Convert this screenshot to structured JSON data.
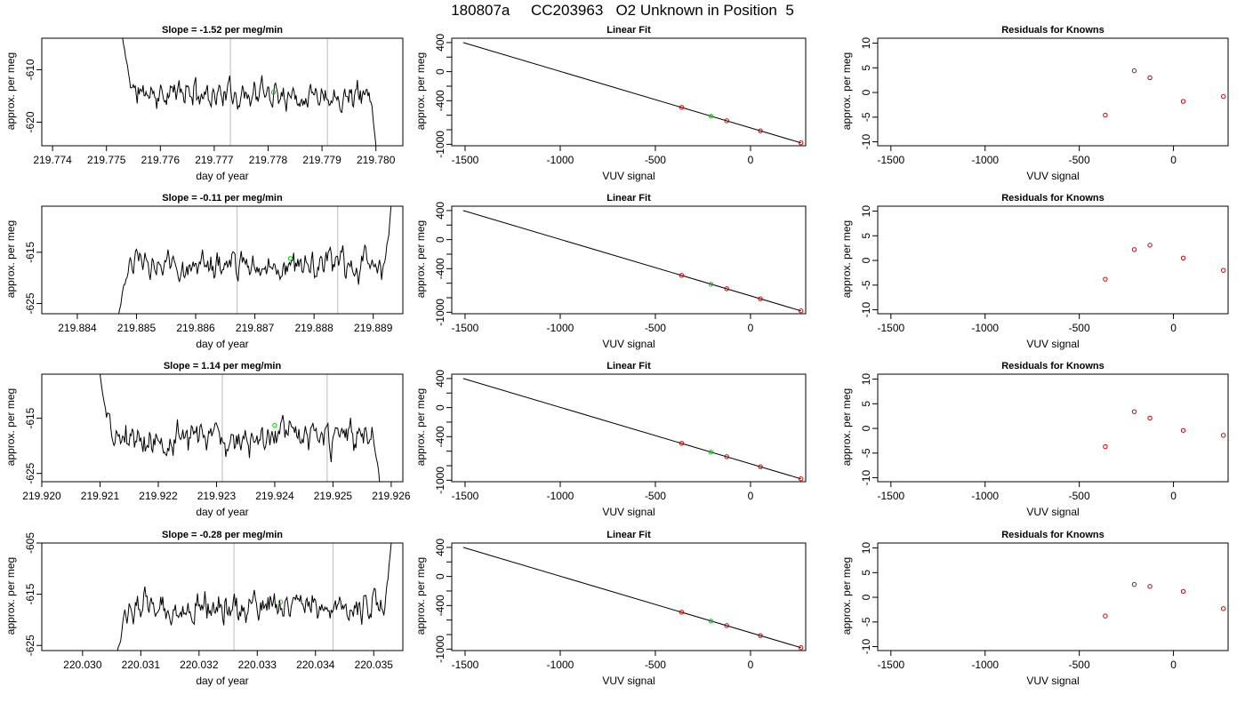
{
  "page_title": "180807a     CC203963   O2 Unknown in Position  5",
  "colors": {
    "trace": "#000000",
    "marker": "#00cc00",
    "residual": "#cc0000",
    "vline": "#bbbbbb",
    "fit": "#000000"
  },
  "chart_data": [
    {
      "type": "line",
      "panel": "trace",
      "row": 0,
      "title": "Slope =  -1.52  per meg/min",
      "xlabel": "day of year",
      "ylabel": "approx. per meg",
      "xlim": [
        219.7738,
        219.7805
      ],
      "ylim": [
        -624.5,
        -604
      ],
      "xticks": [
        219.774,
        219.775,
        219.776,
        219.777,
        219.778,
        219.779,
        219.78
      ],
      "xtick_labels": [
        "219.774",
        "219.775",
        "219.776",
        "219.777",
        "219.778",
        "219.779",
        "219.780"
      ],
      "yticks": [
        -610,
        -620
      ],
      "ytick_labels": [
        "-610",
        "-620"
      ],
      "vlines": [
        219.7773,
        219.7791
      ],
      "marker": {
        "x": 219.7781,
        "y": -614.3
      },
      "trace": {
        "x_start": 219.7753,
        "x_end": 219.78,
        "seed": 11,
        "first": -604,
        "last": -624.5,
        "level": -614.5,
        "amp": 2.2,
        "n": 260,
        "head": -604,
        "tail": -624.5
      }
    },
    {
      "type": "line",
      "panel": "trace",
      "row": 1,
      "title": "Slope =  -0.11  per meg/min",
      "xlabel": "day of year",
      "ylabel": "approx. per meg",
      "xlim": [
        219.8834,
        219.8895
      ],
      "ylim": [
        -627,
        -606
      ],
      "xticks": [
        219.884,
        219.885,
        219.886,
        219.887,
        219.888,
        219.889
      ],
      "xtick_labels": [
        "219.884",
        "219.885",
        "219.886",
        "219.887",
        "219.888",
        "219.889"
      ],
      "yticks": [
        -615,
        -625
      ],
      "ytick_labels": [
        "-615",
        "-625"
      ],
      "vlines": [
        219.8867,
        219.8884
      ],
      "marker": {
        "x": 219.8876,
        "y": -616.2
      },
      "trace": {
        "x_start": 219.8847,
        "x_end": 219.8893,
        "seed": 23,
        "first": -627,
        "last": -606,
        "level": -617.5,
        "amp": 2.4,
        "n": 260,
        "head": -627,
        "tail": -606
      }
    },
    {
      "type": "line",
      "panel": "trace",
      "row": 2,
      "title": "Slope =  1.14  per meg/min",
      "xlabel": "day of year",
      "ylabel": "approx. per meg",
      "xlim": [
        219.92,
        219.9262
      ],
      "ylim": [
        -626.5,
        -607
      ],
      "xticks": [
        219.92,
        219.921,
        219.922,
        219.923,
        219.924,
        219.925,
        219.926
      ],
      "xtick_labels": [
        "219.920",
        "219.921",
        "219.922",
        "219.923",
        "219.924",
        "219.925",
        "219.926"
      ],
      "yticks": [
        -615,
        -625
      ],
      "ytick_labels": [
        "-615",
        "-625"
      ],
      "vlines": [
        219.9231,
        219.9249
      ],
      "marker": {
        "x": 219.924,
        "y": -616.3
      },
      "trace": {
        "x_start": 219.921,
        "x_end": 219.9258,
        "seed": 37,
        "first": -607,
        "last": -626.5,
        "level": -618.5,
        "amp": 2.3,
        "n": 260,
        "head": -607,
        "tail": -626.5
      }
    },
    {
      "type": "line",
      "panel": "trace",
      "row": 3,
      "title": "Slope =  -0.28  per meg/min",
      "xlabel": "day of year",
      "ylabel": "approx. per meg",
      "xlim": [
        220.0293,
        220.0355
      ],
      "ylim": [
        -626,
        -605
      ],
      "xticks": [
        220.03,
        220.031,
        220.032,
        220.033,
        220.034,
        220.035
      ],
      "xtick_labels": [
        "220.030",
        "220.031",
        "220.032",
        "220.033",
        "220.034",
        "220.035"
      ],
      "yticks": [
        -605,
        -615,
        -625
      ],
      "ytick_labels": [
        "-605",
        "-615",
        "-625"
      ],
      "vlines": [
        220.0326,
        220.0343
      ],
      "marker": {
        "x": 220.0334,
        "y": -616.5
      },
      "trace": {
        "x_start": 220.0306,
        "x_end": 220.0353,
        "seed": 53,
        "first": -626,
        "last": -605,
        "level": -617.5,
        "amp": 2.4,
        "n": 260,
        "head": -626,
        "tail": -605
      }
    },
    {
      "type": "scatter",
      "panel": "fit",
      "row": 0,
      "title": "Linear Fit",
      "xlabel": "VUV signal",
      "ylabel": "approx. per meg",
      "xlim": [
        -1570,
        290
      ],
      "ylim": [
        -1020,
        460
      ],
      "xticks": [
        -1500,
        -1000,
        -500,
        0
      ],
      "xtick_labels": [
        "-1500",
        "-1000",
        "-500",
        "0"
      ],
      "yticks": [
        400,
        0,
        -400,
        -1000
      ],
      "ytick_labels": [
        "400",
        "0",
        "-400",
        "-1000"
      ],
      "y_minor_ticks": [
        200,
        -200,
        -600,
        -800
      ],
      "line": {
        "x": [
          -1510,
          265
        ],
        "y": [
          400,
          -980
        ]
      },
      "knowns": {
        "x": [
          -362,
          -125,
          52,
          265
        ],
        "y": [
          -492,
          -676,
          -814,
          -980
        ]
      },
      "unknown": {
        "x": [
          -208
        ],
        "y": [
          -613
        ]
      }
    },
    {
      "type": "scatter",
      "panel": "fit",
      "row": 1,
      "title": "Linear Fit",
      "xlabel": "VUV signal",
      "ylabel": "approx. per meg",
      "xlim": [
        -1570,
        290
      ],
      "ylim": [
        -1020,
        460
      ],
      "xticks": [
        -1500,
        -1000,
        -500,
        0
      ],
      "xtick_labels": [
        "-1500",
        "-1000",
        "-500",
        "0"
      ],
      "yticks": [
        400,
        0,
        -400,
        -1000
      ],
      "ytick_labels": [
        "400",
        "0",
        "-400",
        "-1000"
      ],
      "y_minor_ticks": [
        200,
        -200,
        -600,
        -800
      ],
      "line": {
        "x": [
          -1510,
          265
        ],
        "y": [
          400,
          -980
        ]
      },
      "knowns": {
        "x": [
          -362,
          -125,
          52,
          265
        ],
        "y": [
          -492,
          -676,
          -814,
          -980
        ]
      },
      "unknown": {
        "x": [
          -208
        ],
        "y": [
          -614
        ]
      }
    },
    {
      "type": "scatter",
      "panel": "fit",
      "row": 2,
      "title": "Linear Fit",
      "xlabel": "VUV signal",
      "ylabel": "approx. per meg",
      "xlim": [
        -1570,
        290
      ],
      "ylim": [
        -1020,
        460
      ],
      "xticks": [
        -1500,
        -1000,
        -500,
        0
      ],
      "xtick_labels": [
        "-1500",
        "-1000",
        "-500",
        "0"
      ],
      "yticks": [
        400,
        0,
        -400,
        -1000
      ],
      "ytick_labels": [
        "400",
        "0",
        "-400",
        "-1000"
      ],
      "y_minor_ticks": [
        200,
        -200,
        -600,
        -800
      ],
      "line": {
        "x": [
          -1510,
          265
        ],
        "y": [
          400,
          -980
        ]
      },
      "knowns": {
        "x": [
          -362,
          -125,
          52,
          265
        ],
        "y": [
          -492,
          -676,
          -814,
          -980
        ]
      },
      "unknown": {
        "x": [
          -208
        ],
        "y": [
          -613
        ]
      }
    },
    {
      "type": "scatter",
      "panel": "fit",
      "row": 3,
      "title": "Linear Fit",
      "xlabel": "VUV signal",
      "ylabel": "approx. per meg",
      "xlim": [
        -1570,
        290
      ],
      "ylim": [
        -1020,
        460
      ],
      "xticks": [
        -1500,
        -1000,
        -500,
        0
      ],
      "xtick_labels": [
        "-1500",
        "-1000",
        "-500",
        "0"
      ],
      "yticks": [
        400,
        0,
        -400,
        -1000
      ],
      "ytick_labels": [
        "400",
        "0",
        "-400",
        "-1000"
      ],
      "y_minor_ticks": [
        200,
        -200,
        -600,
        -800
      ],
      "line": {
        "x": [
          -1510,
          265
        ],
        "y": [
          400,
          -980
        ]
      },
      "knowns": {
        "x": [
          -362,
          -125,
          52,
          265
        ],
        "y": [
          -492,
          -676,
          -814,
          -980
        ]
      },
      "unknown": {
        "x": [
          -208
        ],
        "y": [
          -614
        ]
      }
    },
    {
      "type": "scatter",
      "panel": "resid",
      "row": 0,
      "title": "Residuals for Knowns",
      "xlabel": "VUV signal",
      "ylabel": "approx. per meg",
      "xlim": [
        -1570,
        290
      ],
      "ylim": [
        -10.8,
        11
      ],
      "xticks": [
        -1500,
        -1000,
        -500,
        0
      ],
      "xtick_labels": [
        "-1500",
        "-1000",
        "-500",
        "0"
      ],
      "yticks": [
        10,
        5,
        0,
        -5,
        -10
      ],
      "ytick_labels": [
        "10",
        "5",
        "0",
        "-5",
        "-10"
      ],
      "residuals": {
        "x": [
          -362,
          -208,
          -125,
          52,
          265
        ],
        "y": [
          -4.6,
          4.4,
          3.0,
          -1.8,
          -0.8
        ]
      }
    },
    {
      "type": "scatter",
      "panel": "resid",
      "row": 1,
      "title": "Residuals for Knowns",
      "xlabel": "VUV signal",
      "ylabel": "approx. per meg",
      "xlim": [
        -1570,
        290
      ],
      "ylim": [
        -10.8,
        11
      ],
      "xticks": [
        -1500,
        -1000,
        -500,
        0
      ],
      "xtick_labels": [
        "-1500",
        "-1000",
        "-500",
        "0"
      ],
      "yticks": [
        10,
        5,
        0,
        -5,
        -10
      ],
      "ytick_labels": [
        "10",
        "5",
        "0",
        "-5",
        "-10"
      ],
      "residuals": {
        "x": [
          -362,
          -208,
          -125,
          52,
          265
        ],
        "y": [
          -3.8,
          2.2,
          3.1,
          0.5,
          -2.0
        ]
      }
    },
    {
      "type": "scatter",
      "panel": "resid",
      "row": 2,
      "title": "Residuals for Knowns",
      "xlabel": "VUV signal",
      "ylabel": "approx. per meg",
      "xlim": [
        -1570,
        290
      ],
      "ylim": [
        -10.8,
        11
      ],
      "xticks": [
        -1500,
        -1000,
        -500,
        0
      ],
      "xtick_labels": [
        "-1500",
        "-1000",
        "-500",
        "0"
      ],
      "yticks": [
        10,
        5,
        0,
        -5,
        -10
      ],
      "ytick_labels": [
        "10",
        "5",
        "0",
        "-5",
        "-10"
      ],
      "residuals": {
        "x": [
          -362,
          -208,
          -125,
          52,
          265
        ],
        "y": [
          -3.7,
          3.4,
          2.1,
          -0.4,
          -1.4
        ]
      }
    },
    {
      "type": "scatter",
      "panel": "resid",
      "row": 3,
      "title": "Residuals for Knowns",
      "xlabel": "VUV signal",
      "ylabel": "approx. per meg",
      "xlim": [
        -1570,
        290
      ],
      "ylim": [
        -10.8,
        11
      ],
      "xticks": [
        -1500,
        -1000,
        -500,
        0
      ],
      "xtick_labels": [
        "-1500",
        "-1000",
        "-500",
        "0"
      ],
      "yticks": [
        10,
        5,
        0,
        -5,
        -10
      ],
      "ytick_labels": [
        "10",
        "5",
        "0",
        "-5",
        "-10"
      ],
      "residuals": {
        "x": [
          -362,
          -208,
          -125,
          52,
          265
        ],
        "y": [
          -3.8,
          2.6,
          2.2,
          1.2,
          -2.3
        ]
      }
    }
  ]
}
